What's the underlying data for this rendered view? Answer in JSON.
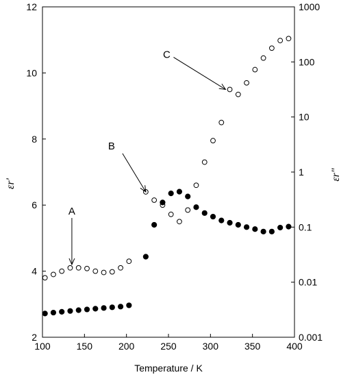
{
  "chart_data": {
    "type": "scatter",
    "xlabel": "Temperature / K",
    "ylabel_left": "εr'",
    "ylabel_right": "εr\"",
    "xlim": [
      100,
      400
    ],
    "ylim_left": [
      2,
      12
    ],
    "ylim_right": [
      0.001,
      1000
    ],
    "right_axis_scale": "log",
    "grid": false,
    "x_ticks": [
      100,
      150,
      200,
      250,
      300,
      350,
      400
    ],
    "y_left_ticks": [
      2,
      4,
      6,
      8,
      10,
      12
    ],
    "y_right_ticks": [
      0.001,
      0.01,
      0.1,
      1,
      10,
      100,
      1000
    ],
    "y_right_tick_labels": [
      "0.001",
      "0.01",
      "0.1",
      "1",
      "10",
      "100",
      "1000"
    ],
    "series": [
      {
        "marker": "open-circle",
        "axis": "left",
        "x": [
          103,
          113,
          123,
          133,
          143,
          153,
          163,
          173,
          183,
          193,
          203,
          223,
          233,
          243,
          253,
          263,
          273,
          283,
          293,
          303,
          313,
          323,
          333,
          343,
          353,
          363,
          373,
          383,
          393
        ],
        "y": [
          3.8,
          3.9,
          4.0,
          4.1,
          4.1,
          4.08,
          4.0,
          3.96,
          3.98,
          4.1,
          4.3,
          6.4,
          6.15,
          6.0,
          5.72,
          5.5,
          5.85,
          6.6,
          7.3,
          7.95,
          8.5,
          9.5,
          9.35,
          9.7,
          10.1,
          10.45,
          10.75,
          10.98,
          11.04
        ]
      },
      {
        "marker": "filled-circle",
        "axis": "right",
        "x": [
          103,
          113,
          123,
          133,
          143,
          153,
          163,
          173,
          183,
          193,
          203,
          223,
          233,
          243,
          253,
          263,
          273,
          283,
          293,
          303,
          313,
          323,
          333,
          343,
          353,
          363,
          373,
          383,
          393
        ],
        "y": [
          0.0027,
          0.0028,
          0.0029,
          0.003,
          0.0031,
          0.0032,
          0.0033,
          0.0034,
          0.0035,
          0.0036,
          0.0038,
          0.029,
          0.11,
          0.28,
          0.41,
          0.44,
          0.36,
          0.23,
          0.18,
          0.155,
          0.132,
          0.12,
          0.11,
          0.1,
          0.092,
          0.083,
          0.083,
          0.098,
          0.102
        ]
      }
    ],
    "annotations": [
      {
        "label": "A",
        "x": 135,
        "y": 4.2
      },
      {
        "label": "B",
        "x": 223,
        "y": 6.4
      },
      {
        "label": "C",
        "x": 318,
        "y": 9.5
      }
    ]
  }
}
